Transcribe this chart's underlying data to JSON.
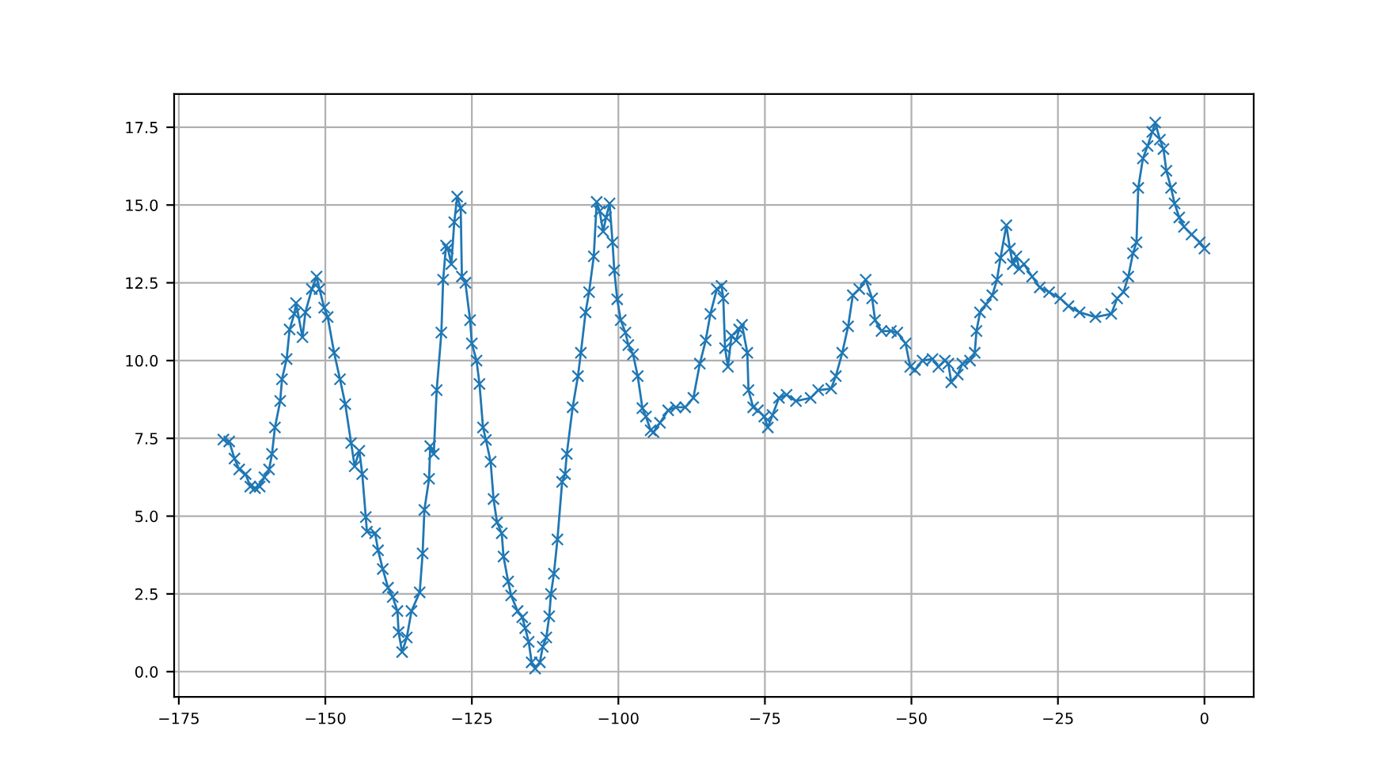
{
  "chart_data": {
    "type": "line",
    "marker": "cross",
    "line_style": "solid",
    "grid": true,
    "xlim": [
      -175.8,
      8.4
    ],
    "ylim": [
      -0.81,
      18.57
    ],
    "xticks": [
      {
        "value": -175,
        "label": "−175"
      },
      {
        "value": -150,
        "label": "−150"
      },
      {
        "value": -125,
        "label": "−125"
      },
      {
        "value": -100,
        "label": "−100"
      },
      {
        "value": -75,
        "label": "−75"
      },
      {
        "value": -50,
        "label": "−50"
      },
      {
        "value": -25,
        "label": "−25"
      },
      0
    ],
    "yticks": [
      {
        "value": 0,
        "label": "0.0"
      },
      {
        "value": 2.5,
        "label": "2.5"
      },
      {
        "value": 5,
        "label": "5.0"
      },
      {
        "value": 7.5,
        "label": "7.5"
      },
      {
        "value": 10,
        "label": "10.0"
      },
      {
        "value": 12.5,
        "label": "12.5"
      },
      {
        "value": 15,
        "label": "15.0"
      },
      {
        "value": 17.5,
        "label": "17.5"
      }
    ],
    "series": [
      {
        "color": "#1f77b4",
        "x": [
          -167.4,
          -166.4,
          -165.5,
          -164.7,
          -163.6,
          -162.8,
          -162.0,
          -161.2,
          -160.4,
          -159.6,
          -159.1,
          -158.6,
          -157.7,
          -157.4,
          -156.6,
          -156.1,
          -155.3,
          -155.0,
          -153.9,
          -153.4,
          -152.3,
          -151.5,
          -151.0,
          -150.2,
          -149.6,
          -148.5,
          -147.5,
          -146.6,
          -145.6,
          -145.0,
          -144.2,
          -143.7,
          -143.1,
          -142.9,
          -141.5,
          -141.0,
          -140.2,
          -139.3,
          -138.5,
          -137.7,
          -137.5,
          -136.9,
          -136.1,
          -135.3,
          -133.9,
          -133.4,
          -133.1,
          -132.3,
          -132.1,
          -131.5,
          -131.0,
          -130.2,
          -129.9,
          -129.4,
          -129.1,
          -128.5,
          -128.0,
          -127.5,
          -126.9,
          -126.7,
          -126.1,
          -125.3,
          -125.0,
          -124.2,
          -123.7,
          -123.1,
          -122.6,
          -121.8,
          -121.3,
          -120.7,
          -119.9,
          -119.6,
          -118.8,
          -118.3,
          -117.2,
          -116.4,
          -115.9,
          -115.3,
          -114.8,
          -114.2,
          -113.4,
          -112.9,
          -112.3,
          -111.8,
          -111.5,
          -111.0,
          -110.4,
          -109.6,
          -109.1,
          -108.8,
          -107.8,
          -106.9,
          -106.4,
          -105.6,
          -105.0,
          -104.2,
          -103.7,
          -103.2,
          -102.6,
          -102.1,
          -101.5,
          -101.0,
          -100.7,
          -100.2,
          -99.6,
          -98.8,
          -98.3,
          -97.5,
          -96.7,
          -95.9,
          -95.3,
          -94.5,
          -94.0,
          -92.9,
          -91.5,
          -90.2,
          -88.6,
          -87.2,
          -86.1,
          -85.1,
          -84.3,
          -83.2,
          -82.4,
          -82.1,
          -81.8,
          -81.3,
          -80.7,
          -79.9,
          -79.4,
          -78.9,
          -78.0,
          -77.8,
          -77.0,
          -76.2,
          -75.1,
          -74.5,
          -73.7,
          -72.6,
          -71.3,
          -69.7,
          -67.2,
          -65.9,
          -63.7,
          -62.9,
          -61.8,
          -60.8,
          -60.0,
          -58.9,
          -57.8,
          -56.7,
          -56.2,
          -55.1,
          -53.5,
          -52.4,
          -51.0,
          -50.2,
          -49.4,
          -48.1,
          -46.4,
          -45.4,
          -44.3,
          -43.7,
          -43.2,
          -42.1,
          -41.3,
          -40.0,
          -39.2,
          -38.9,
          -38.3,
          -37.3,
          -36.2,
          -35.4,
          -34.8,
          -33.8,
          -33.2,
          -32.7,
          -32.1,
          -31.6,
          -30.8,
          -29.4,
          -28.1,
          -26.5,
          -24.6,
          -23.2,
          -21.3,
          -18.6,
          -15.9,
          -14.9,
          -13.8,
          -13.0,
          -12.2,
          -11.6,
          -11.3,
          -10.5,
          -9.7,
          -8.9,
          -8.4,
          -7.6,
          -7.0,
          -6.5,
          -5.7,
          -5.1,
          -4.3,
          -3.5,
          -2.2,
          -0.8,
          0
        ],
        "values": [
          7.46,
          7.4,
          6.85,
          6.5,
          6.35,
          5.95,
          5.9,
          5.95,
          6.25,
          6.5,
          7.0,
          7.85,
          8.7,
          9.4,
          10.05,
          11.0,
          11.5,
          11.85,
          10.75,
          11.55,
          12.3,
          12.7,
          12.3,
          11.7,
          11.4,
          10.25,
          9.4,
          8.6,
          7.35,
          6.6,
          7.1,
          6.35,
          4.97,
          4.5,
          4.45,
          3.9,
          3.3,
          2.7,
          2.4,
          1.95,
          1.27,
          0.63,
          1.1,
          1.95,
          2.55,
          3.8,
          5.2,
          6.2,
          7.25,
          7.0,
          9.05,
          10.9,
          12.6,
          13.7,
          13.6,
          13.1,
          14.45,
          15.27,
          14.9,
          12.7,
          12.5,
          11.3,
          10.55,
          10.0,
          9.25,
          7.85,
          7.45,
          6.75,
          5.55,
          4.8,
          4.45,
          3.7,
          2.9,
          2.45,
          1.95,
          1.75,
          1.4,
          0.96,
          0.3,
          0.1,
          0.3,
          0.8,
          1.1,
          1.78,
          2.5,
          3.15,
          4.25,
          6.1,
          6.35,
          7.0,
          8.5,
          9.5,
          10.25,
          11.55,
          12.2,
          13.35,
          15.1,
          14.8,
          14.15,
          14.6,
          15.05,
          13.8,
          12.9,
          11.97,
          11.3,
          10.9,
          10.5,
          10.2,
          9.5,
          8.47,
          8.2,
          7.76,
          7.7,
          8.0,
          8.4,
          8.5,
          8.5,
          8.8,
          9.9,
          10.65,
          11.5,
          12.3,
          12.4,
          12.0,
          10.4,
          9.8,
          10.8,
          10.65,
          11.0,
          11.15,
          10.25,
          9.05,
          8.5,
          8.4,
          8.2,
          7.85,
          8.25,
          8.8,
          8.9,
          8.7,
          8.8,
          9.05,
          9.1,
          9.5,
          10.25,
          11.1,
          12.1,
          12.3,
          12.6,
          12.0,
          11.3,
          10.95,
          10.95,
          10.9,
          10.55,
          9.8,
          9.7,
          10.0,
          10.05,
          9.8,
          10.0,
          9.9,
          9.3,
          9.55,
          9.9,
          10.0,
          10.25,
          10.95,
          11.55,
          11.8,
          12.1,
          12.6,
          13.3,
          14.35,
          13.6,
          13.1,
          13.35,
          12.95,
          13.1,
          12.7,
          12.35,
          12.2,
          12.0,
          11.75,
          11.55,
          11.4,
          11.5,
          12.0,
          12.2,
          12.7,
          13.45,
          13.8,
          15.55,
          16.5,
          16.9,
          17.35,
          17.65,
          17.1,
          16.8,
          16.1,
          15.55,
          15.05,
          14.6,
          14.3,
          14.05,
          13.8,
          13.6
        ]
      }
    ]
  }
}
